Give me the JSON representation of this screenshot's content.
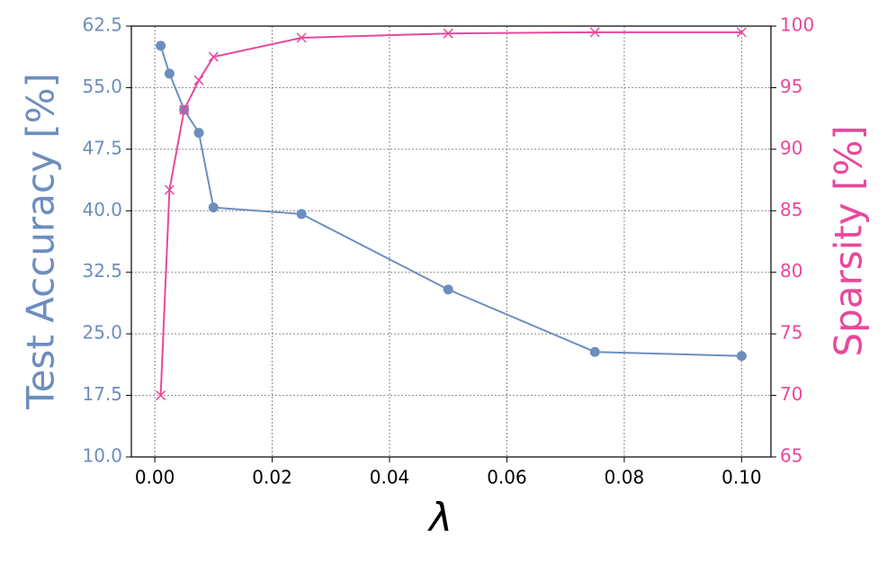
{
  "chart_data": {
    "type": "line",
    "x_label": "λ",
    "y_label": "Test Accuracy [%]",
    "y2_label": "Sparsity [%]",
    "x": [
      0.001,
      0.0025,
      0.005,
      0.0075,
      0.01,
      0.025,
      0.05,
      0.075,
      0.1
    ],
    "series": [
      {
        "name": "Test Accuracy",
        "color": "#6c8ebf",
        "marker": "circle",
        "values": [
          60.1,
          56.7,
          52.3,
          49.5,
          40.4,
          39.6,
          30.4,
          22.8,
          22.3
        ]
      },
      {
        "name": "Sparsity",
        "color": "#e8489b",
        "marker": "x",
        "axis": "y2",
        "values": [
          70.0,
          86.7,
          93.2,
          95.6,
          97.5,
          99.05,
          99.4,
          99.5,
          99.5
        ]
      }
    ],
    "xlim": [
      -0.004,
      0.105
    ],
    "xticks": [
      {
        "value": 0,
        "label": "0.00"
      },
      {
        "value": 0.02,
        "label": "0.02"
      },
      {
        "value": 0.04,
        "label": "0.04"
      },
      {
        "value": 0.06,
        "label": "0.06"
      },
      {
        "value": 0.08,
        "label": "0.08"
      },
      {
        "value": 0.1,
        "label": "0.10"
      }
    ],
    "ylim": [
      10,
      62.5
    ],
    "yticks": [
      {
        "value": 10,
        "label": "10.0"
      },
      17.5,
      {
        "value": 25,
        "label": "25.0"
      },
      32.5,
      {
        "value": 40,
        "label": "40.0"
      },
      47.5,
      {
        "value": 55,
        "label": "55.0"
      },
      62.5
    ],
    "y2lim": [
      65,
      100
    ],
    "y2ticks": [
      65,
      70,
      75,
      80,
      85,
      90,
      95,
      100
    ],
    "grid": true
  }
}
